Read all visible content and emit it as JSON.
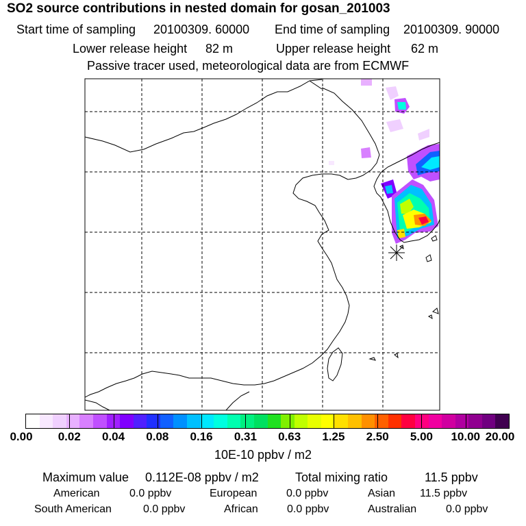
{
  "header": {
    "title": "SO2 source contributions in nested domain for gosan_201003",
    "start_label": "Start time of sampling",
    "start_value": "20100309. 60000",
    "end_label": "End time of sampling",
    "end_value": "20100309. 90000",
    "lower_label": "Lower release height",
    "lower_value": "82 m",
    "upper_label": "Upper release height",
    "upper_value": "62 m",
    "note": "Passive tracer used, meteorological data are from ECMWF"
  },
  "colorbar": {
    "colors": [
      "#ffffff",
      "#f8e8ff",
      "#f0d0ff",
      "#e8b0ff",
      "#d880ff",
      "#c050ff",
      "#a020ff",
      "#8000ff",
      "#5020ff",
      "#2030ff",
      "#1060ff",
      "#0090ff",
      "#00c0ff",
      "#00e8ff",
      "#00ffe0",
      "#00ffb0",
      "#00f080",
      "#00e060",
      "#20e020",
      "#80f000",
      "#c0ff00",
      "#e8ff00",
      "#ffff00",
      "#ffe000",
      "#ffc000",
      "#ff9000",
      "#ff6000",
      "#ff3000",
      "#ff0040",
      "#ff0080",
      "#f000a0",
      "#d000a0",
      "#b000a0",
      "#900090",
      "#700080",
      "#400050"
    ],
    "tick_labels": [
      "0.00",
      "0.02",
      "0.04",
      "0.08",
      "0.16",
      "0.31",
      "0.63",
      "1.25",
      "2.50",
      "5.00",
      "10.00",
      "20.00"
    ],
    "unit": "10E-10 ppbv / m2"
  },
  "stats": {
    "max_label": "Maximum value",
    "max_value": "0.112E-08 ppbv / m2",
    "total_label": "Total mixing ratio",
    "total_value": "11.5 ppbv",
    "regions": [
      {
        "name": "American",
        "value": "0.0 ppbv"
      },
      {
        "name": "European",
        "value": "0.0 ppbv"
      },
      {
        "name": "Asian",
        "value": "11.5 ppbv"
      },
      {
        "name": "South American",
        "value": "0.0 ppbv"
      },
      {
        "name": "African",
        "value": "0.0 ppbv"
      },
      {
        "name": "Australian",
        "value": "0.0 ppbv"
      }
    ]
  }
}
